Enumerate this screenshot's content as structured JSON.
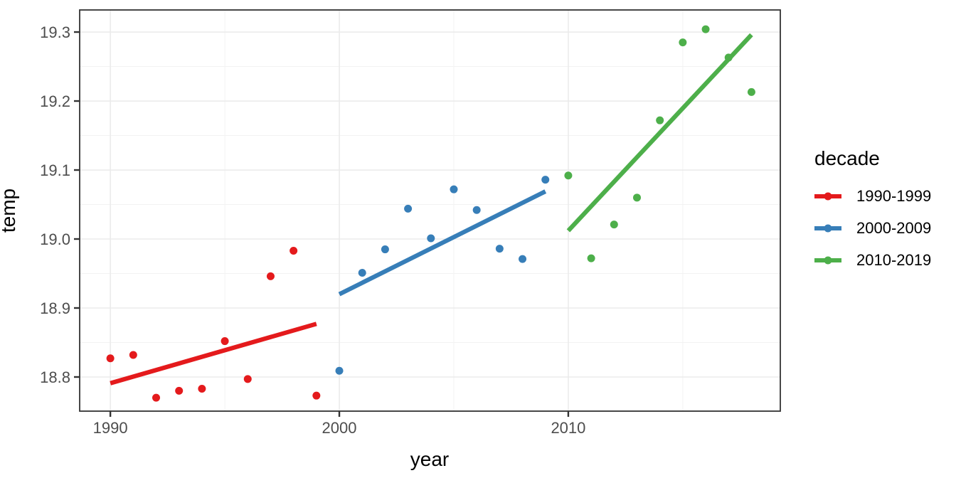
{
  "figure": {
    "background": "#FFFFFF",
    "legend": {
      "title": "decade",
      "entries": [
        {
          "label": "1990-1999",
          "color": "#E41A1C"
        },
        {
          "label": "2000-2009",
          "color": "#377EB8"
        },
        {
          "label": "2010-2019",
          "color": "#4DAF4A"
        }
      ]
    }
  },
  "chart_data": {
    "type": "scatter",
    "title": "",
    "xlabel": "year",
    "ylabel": "temp",
    "xlim": [
      1988.66,
      2019.26
    ],
    "ylim": [
      18.7505,
      19.332
    ],
    "grid": true,
    "legend_position": "right",
    "x_ticks": {
      "values": [
        1990,
        2000,
        2010
      ],
      "labels": [
        "1990",
        "2000",
        "2010"
      ]
    },
    "y_ticks": {
      "values": [
        18.8,
        18.9,
        19.0,
        19.1,
        19.2,
        19.3
      ],
      "labels": [
        "18.8",
        "18.9",
        "19.0",
        "19.1",
        "19.2",
        "19.3"
      ]
    },
    "x_minor_ticks": [
      1995,
      2005,
      2015
    ],
    "y_minor_ticks": [
      18.75,
      18.85,
      18.95,
      19.05,
      19.15,
      19.25
    ],
    "series": [
      {
        "name": "1990-1999",
        "color": "#E41A1C",
        "x": [
          1990,
          1991,
          1992,
          1993,
          1994,
          1995,
          1996,
          1997,
          1998,
          1999
        ],
        "y": [
          18.827,
          18.832,
          18.77,
          18.78,
          18.783,
          18.852,
          18.797,
          18.946,
          18.983,
          18.773
        ],
        "trend": {
          "x": [
            1990,
            1999
          ],
          "y": [
            18.791,
            18.877
          ]
        }
      },
      {
        "name": "2000-2009",
        "color": "#377EB8",
        "x": [
          2000,
          2001,
          2002,
          2003,
          2004,
          2005,
          2006,
          2007,
          2008,
          2009
        ],
        "y": [
          18.809,
          18.951,
          18.985,
          19.044,
          19.001,
          19.072,
          19.042,
          18.986,
          18.971,
          19.086
        ],
        "trend": {
          "x": [
            2000,
            2009
          ],
          "y": [
            18.92,
            19.069
          ]
        }
      },
      {
        "name": "2010-2019",
        "color": "#4DAF4A",
        "x": [
          2010,
          2011,
          2012,
          2013,
          2014,
          2015,
          2016,
          2017,
          2018
        ],
        "y": [
          19.092,
          18.972,
          19.021,
          19.06,
          19.172,
          19.285,
          19.304,
          19.263,
          19.213
        ],
        "trend": {
          "x": [
            2010,
            2018
          ],
          "y": [
            19.012,
            19.296
          ]
        }
      }
    ],
    "style": {
      "panel_border_color": "#333333",
      "grid_major_color": "#EBEBEB",
      "grid_minor_color": "#F3F3F3",
      "tick_color": "#333333",
      "tick_label_color": "#4D4D4D",
      "point_radius": 5.5,
      "trend_width": 6.2
    }
  }
}
